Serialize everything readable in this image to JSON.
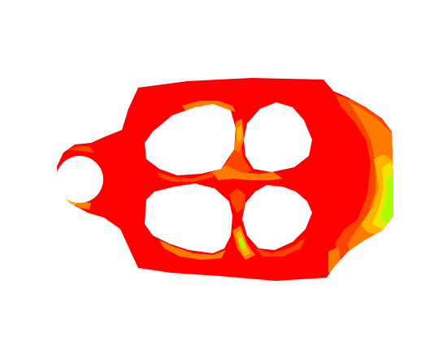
{
  "figure": {
    "background": "#ffffff",
    "contour_colors": {
      "level_high": "#ff0000",
      "level_mid_high": "#ff4400",
      "level_mid": "#ff7a00",
      "level_mid_low": "#ffb300",
      "level_low": "#f2e600",
      "level_lowest": "#aaff00"
    },
    "holes": {
      "count": 5,
      "circular": 1,
      "polygonal": 4
    }
  }
}
